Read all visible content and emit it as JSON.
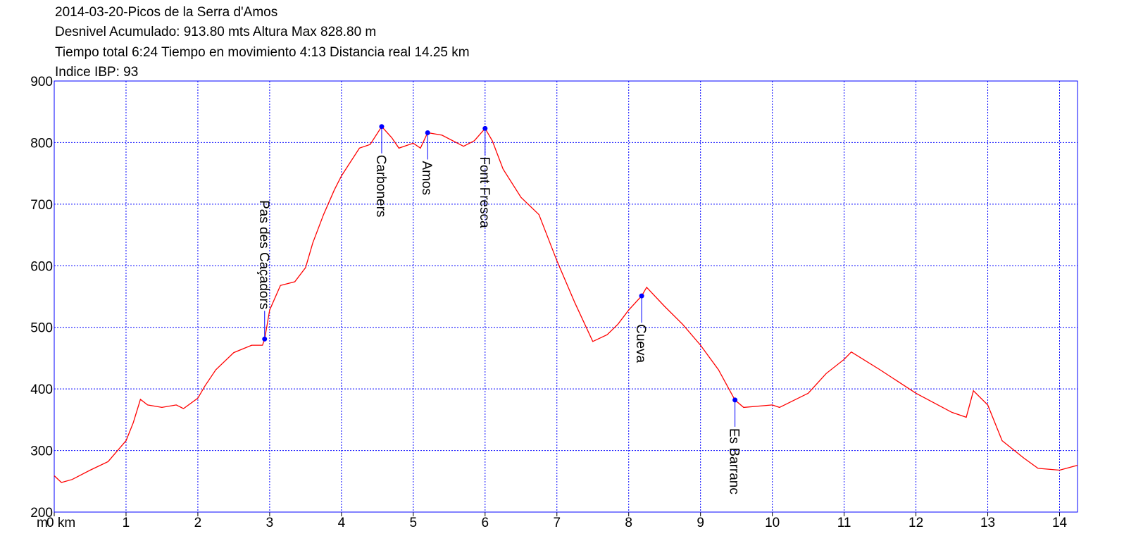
{
  "chart_data": {
    "type": "line",
    "title": "2014-03-20-Picos de la Serra d'Amos",
    "subtitles": [
      "Desnivel Acumulado: 913.80 mts  Altura Max 828.80 m",
      "Tiempo total 6:24 Tiempo en movimiento 4:13 Distancia real 14.25 km",
      "Indice IBP: 93"
    ],
    "y_unit": "m",
    "xlim": [
      0,
      14.25
    ],
    "ylim": [
      200,
      900
    ],
    "xticks": [
      {
        "value": 0,
        "label": "0 km"
      },
      1,
      2,
      3,
      4,
      5,
      6,
      7,
      8,
      9,
      10,
      11,
      12,
      13,
      14
    ],
    "yticks": [
      200,
      300,
      400,
      500,
      600,
      700,
      800,
      900
    ],
    "grid": true,
    "grid_color": "#0000ff",
    "frame_color": "#0000ff",
    "series": [
      {
        "color": "#ff0000",
        "x": [
          0,
          0.1,
          0.25,
          0.5,
          0.75,
          1.0,
          1.1,
          1.2,
          1.3,
          1.5,
          1.7,
          1.8,
          2.0,
          2.1,
          2.25,
          2.5,
          2.75,
          2.9,
          2.93,
          3.0,
          3.15,
          3.35,
          3.5,
          3.6,
          3.75,
          3.9,
          4.0,
          4.25,
          4.4,
          4.56,
          4.7,
          4.8,
          5.0,
          5.1,
          5.2,
          5.4,
          5.7,
          5.85,
          6.0,
          6.1,
          6.25,
          6.5,
          6.75,
          7.0,
          7.25,
          7.5,
          7.7,
          7.85,
          8.0,
          8.18,
          8.25,
          8.5,
          8.75,
          9.0,
          9.25,
          9.48,
          9.6,
          10.0,
          10.1,
          10.5,
          10.75,
          11.0,
          11.1,
          11.5,
          12.0,
          12.5,
          12.7,
          12.8,
          13.0,
          13.2,
          13.5,
          13.7,
          14.0,
          14.25
        ],
        "values": [
          259,
          248,
          253,
          268,
          282,
          316,
          345,
          383,
          374,
          370,
          374,
          368,
          385,
          405,
          431,
          459,
          471,
          471,
          481,
          528,
          568,
          574,
          597,
          637,
          683,
          723,
          746,
          791,
          797,
          826,
          808,
          791,
          799,
          791,
          816,
          812,
          794,
          803,
          823,
          803,
          757,
          711,
          683,
          608,
          540,
          477,
          488,
          505,
          528,
          551,
          565,
          534,
          505,
          471,
          431,
          382,
          370,
          374,
          370,
          393,
          425,
          448,
          460,
          431,
          393,
          362,
          354,
          397,
          374,
          316,
          288,
          271,
          268,
          276
        ]
      }
    ],
    "waypoints_color": "#0000ff",
    "waypoints": [
      {
        "name": "Pas des Caçadors",
        "x": 2.93,
        "y": 481
      },
      {
        "name": "Carboners",
        "x": 4.56,
        "y": 826
      },
      {
        "name": "Amos",
        "x": 5.2,
        "y": 816
      },
      {
        "name": "Font Fresca",
        "x": 6.0,
        "y": 823
      },
      {
        "name": "Cueva",
        "x": 8.18,
        "y": 551
      },
      {
        "name": "Es Barranc",
        "x": 9.48,
        "y": 382
      }
    ]
  }
}
